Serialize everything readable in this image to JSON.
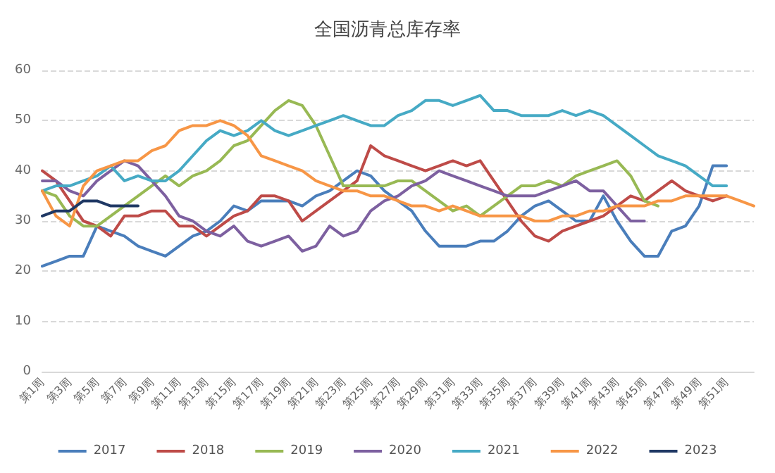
{
  "chart_data": {
    "type": "line",
    "title": "全国沥青总库存率",
    "categories": [
      "第1周",
      null,
      "第3周",
      null,
      "第5周",
      null,
      "第7周",
      null,
      "第9周",
      null,
      "第11周",
      null,
      "第13周",
      null,
      "第15周",
      null,
      "第17周",
      null,
      "第19周",
      null,
      "第21周",
      null,
      "第23周",
      null,
      "第25周",
      null,
      "第27周",
      null,
      "第29周",
      null,
      "第31周",
      null,
      "第33周",
      null,
      "第35周",
      null,
      "第37周",
      null,
      "第39周",
      null,
      "第41周",
      null,
      "第43周",
      null,
      "第45周",
      null,
      "第47周",
      null,
      "第49周",
      null,
      "第51周",
      null,
      null
    ],
    "series": [
      {
        "name": "2017",
        "color": "#4a7ebb",
        "values": [
          21,
          22,
          23,
          23,
          29,
          28,
          27,
          25,
          24,
          23,
          25,
          27,
          28,
          30,
          33,
          32,
          34,
          34,
          34,
          33,
          35,
          36,
          38,
          40,
          39,
          36,
          34,
          32,
          28,
          25,
          25,
          25,
          26,
          26,
          28,
          31,
          33,
          34,
          32,
          30,
          30,
          35,
          30,
          26,
          23,
          23,
          28,
          29,
          33,
          41,
          41,
          null,
          null
        ]
      },
      {
        "name": "2018",
        "color": "#be4b48",
        "values": [
          40,
          38,
          34,
          30,
          29,
          27,
          31,
          31,
          32,
          32,
          29,
          29,
          27,
          29,
          31,
          32,
          35,
          35,
          34,
          30,
          32,
          34,
          36,
          38,
          45,
          43,
          42,
          41,
          40,
          41,
          42,
          41,
          42,
          38,
          34,
          30,
          27,
          26,
          28,
          29,
          30,
          31,
          33,
          35,
          34,
          36,
          38,
          36,
          35,
          34,
          35,
          null,
          null
        ]
      },
      {
        "name": "2019",
        "color": "#98b954",
        "values": [
          36,
          35,
          31,
          29,
          29,
          31,
          33,
          35,
          37,
          39,
          37,
          39,
          40,
          42,
          45,
          46,
          49,
          52,
          54,
          53,
          49,
          43,
          37,
          37,
          37,
          37,
          38,
          38,
          36,
          34,
          32,
          33,
          31,
          33,
          35,
          37,
          37,
          38,
          37,
          39,
          40,
          41,
          42,
          39,
          34,
          33,
          null,
          null,
          null,
          null,
          null,
          null,
          null
        ]
      },
      {
        "name": "2020",
        "color": "#7d60a0",
        "values": [
          38,
          38,
          36,
          35,
          38,
          40,
          42,
          41,
          38,
          35,
          31,
          30,
          28,
          27,
          29,
          26,
          25,
          26,
          27,
          24,
          25,
          29,
          27,
          28,
          32,
          34,
          35,
          37,
          38,
          40,
          39,
          38,
          37,
          36,
          35,
          35,
          35,
          36,
          37,
          38,
          36,
          36,
          33,
          30,
          30,
          null,
          null,
          null,
          null,
          null,
          null,
          null,
          null
        ]
      },
      {
        "name": "2021",
        "color": "#46aac5",
        "values": [
          36,
          37,
          37,
          38,
          39,
          41,
          38,
          39,
          38,
          38,
          40,
          43,
          46,
          48,
          47,
          48,
          50,
          48,
          47,
          48,
          49,
          50,
          51,
          50,
          49,
          49,
          51,
          52,
          54,
          54,
          53,
          54,
          55,
          52,
          52,
          51,
          51,
          51,
          52,
          51,
          52,
          51,
          49,
          47,
          45,
          43,
          42,
          41,
          39,
          37,
          37,
          null,
          null
        ]
      },
      {
        "name": "2022",
        "color": "#f79646",
        "values": [
          36,
          31,
          29,
          37,
          40,
          41,
          42,
          42,
          44,
          45,
          48,
          49,
          49,
          50,
          49,
          47,
          43,
          42,
          41,
          40,
          38,
          37,
          36,
          36,
          35,
          35,
          34,
          33,
          33,
          32,
          33,
          32,
          31,
          31,
          31,
          31,
          30,
          30,
          31,
          31,
          32,
          32,
          33,
          33,
          33,
          34,
          34,
          35,
          35,
          35,
          35,
          34,
          33
        ]
      },
      {
        "name": "2023",
        "color": "#1f3864",
        "values": [
          31,
          32,
          32,
          34,
          34,
          33,
          33,
          33,
          null,
          null,
          null,
          null,
          null,
          null,
          null,
          null,
          null,
          null,
          null,
          null,
          null,
          null,
          null,
          null,
          null,
          null,
          null,
          null,
          null,
          null,
          null,
          null,
          null,
          null,
          null,
          null,
          null,
          null,
          null,
          null,
          null,
          null,
          null,
          null,
          null,
          null,
          null,
          null,
          null,
          null,
          null,
          null,
          null
        ]
      }
    ],
    "ylim": [
      0,
      60
    ],
    "yticks": [
      0,
      10,
      20,
      30,
      40,
      50,
      60
    ],
    "grid": "y",
    "legend": "bottom",
    "marker": "none",
    "line_style": "solid"
  }
}
